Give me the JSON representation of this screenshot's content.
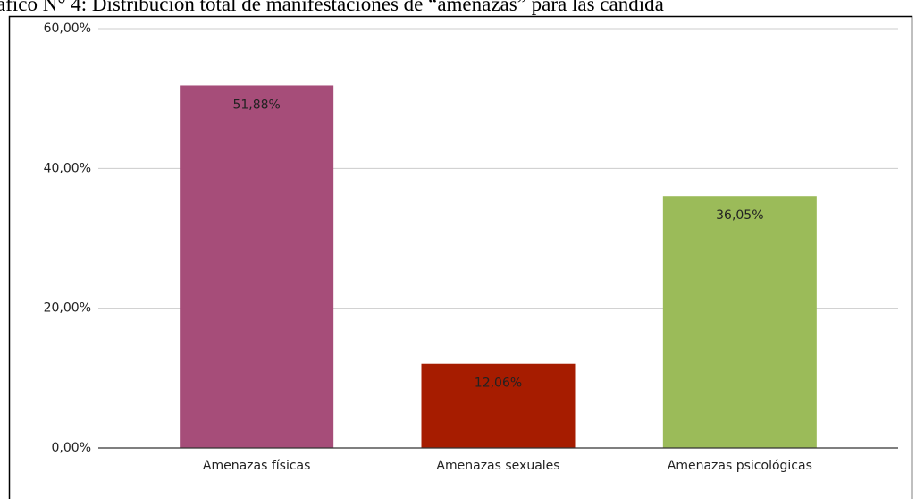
{
  "chart_data": {
    "type": "bar",
    "title": "áfico N° 4: Distribución total de manifestaciones de “amenazas” para las candida",
    "categories": [
      "Amenazas físicas",
      "Amenazas sexuales",
      "Amenazas psicológicas"
    ],
    "values": [
      51.88,
      12.06,
      36.05
    ],
    "value_labels": [
      "51,88%",
      "12,06%",
      "36,05%"
    ],
    "colors": [
      "#a64d79",
      "#a61c00",
      "#9bbb59"
    ],
    "ylim": [
      0,
      60
    ],
    "yticks": [
      {
        "value": 0,
        "label": "0,00%"
      },
      {
        "value": 20,
        "label": "20,00%"
      },
      {
        "value": 40,
        "label": "40,00%"
      },
      {
        "value": 60,
        "label": "60,00%"
      }
    ],
    "grid": true
  }
}
